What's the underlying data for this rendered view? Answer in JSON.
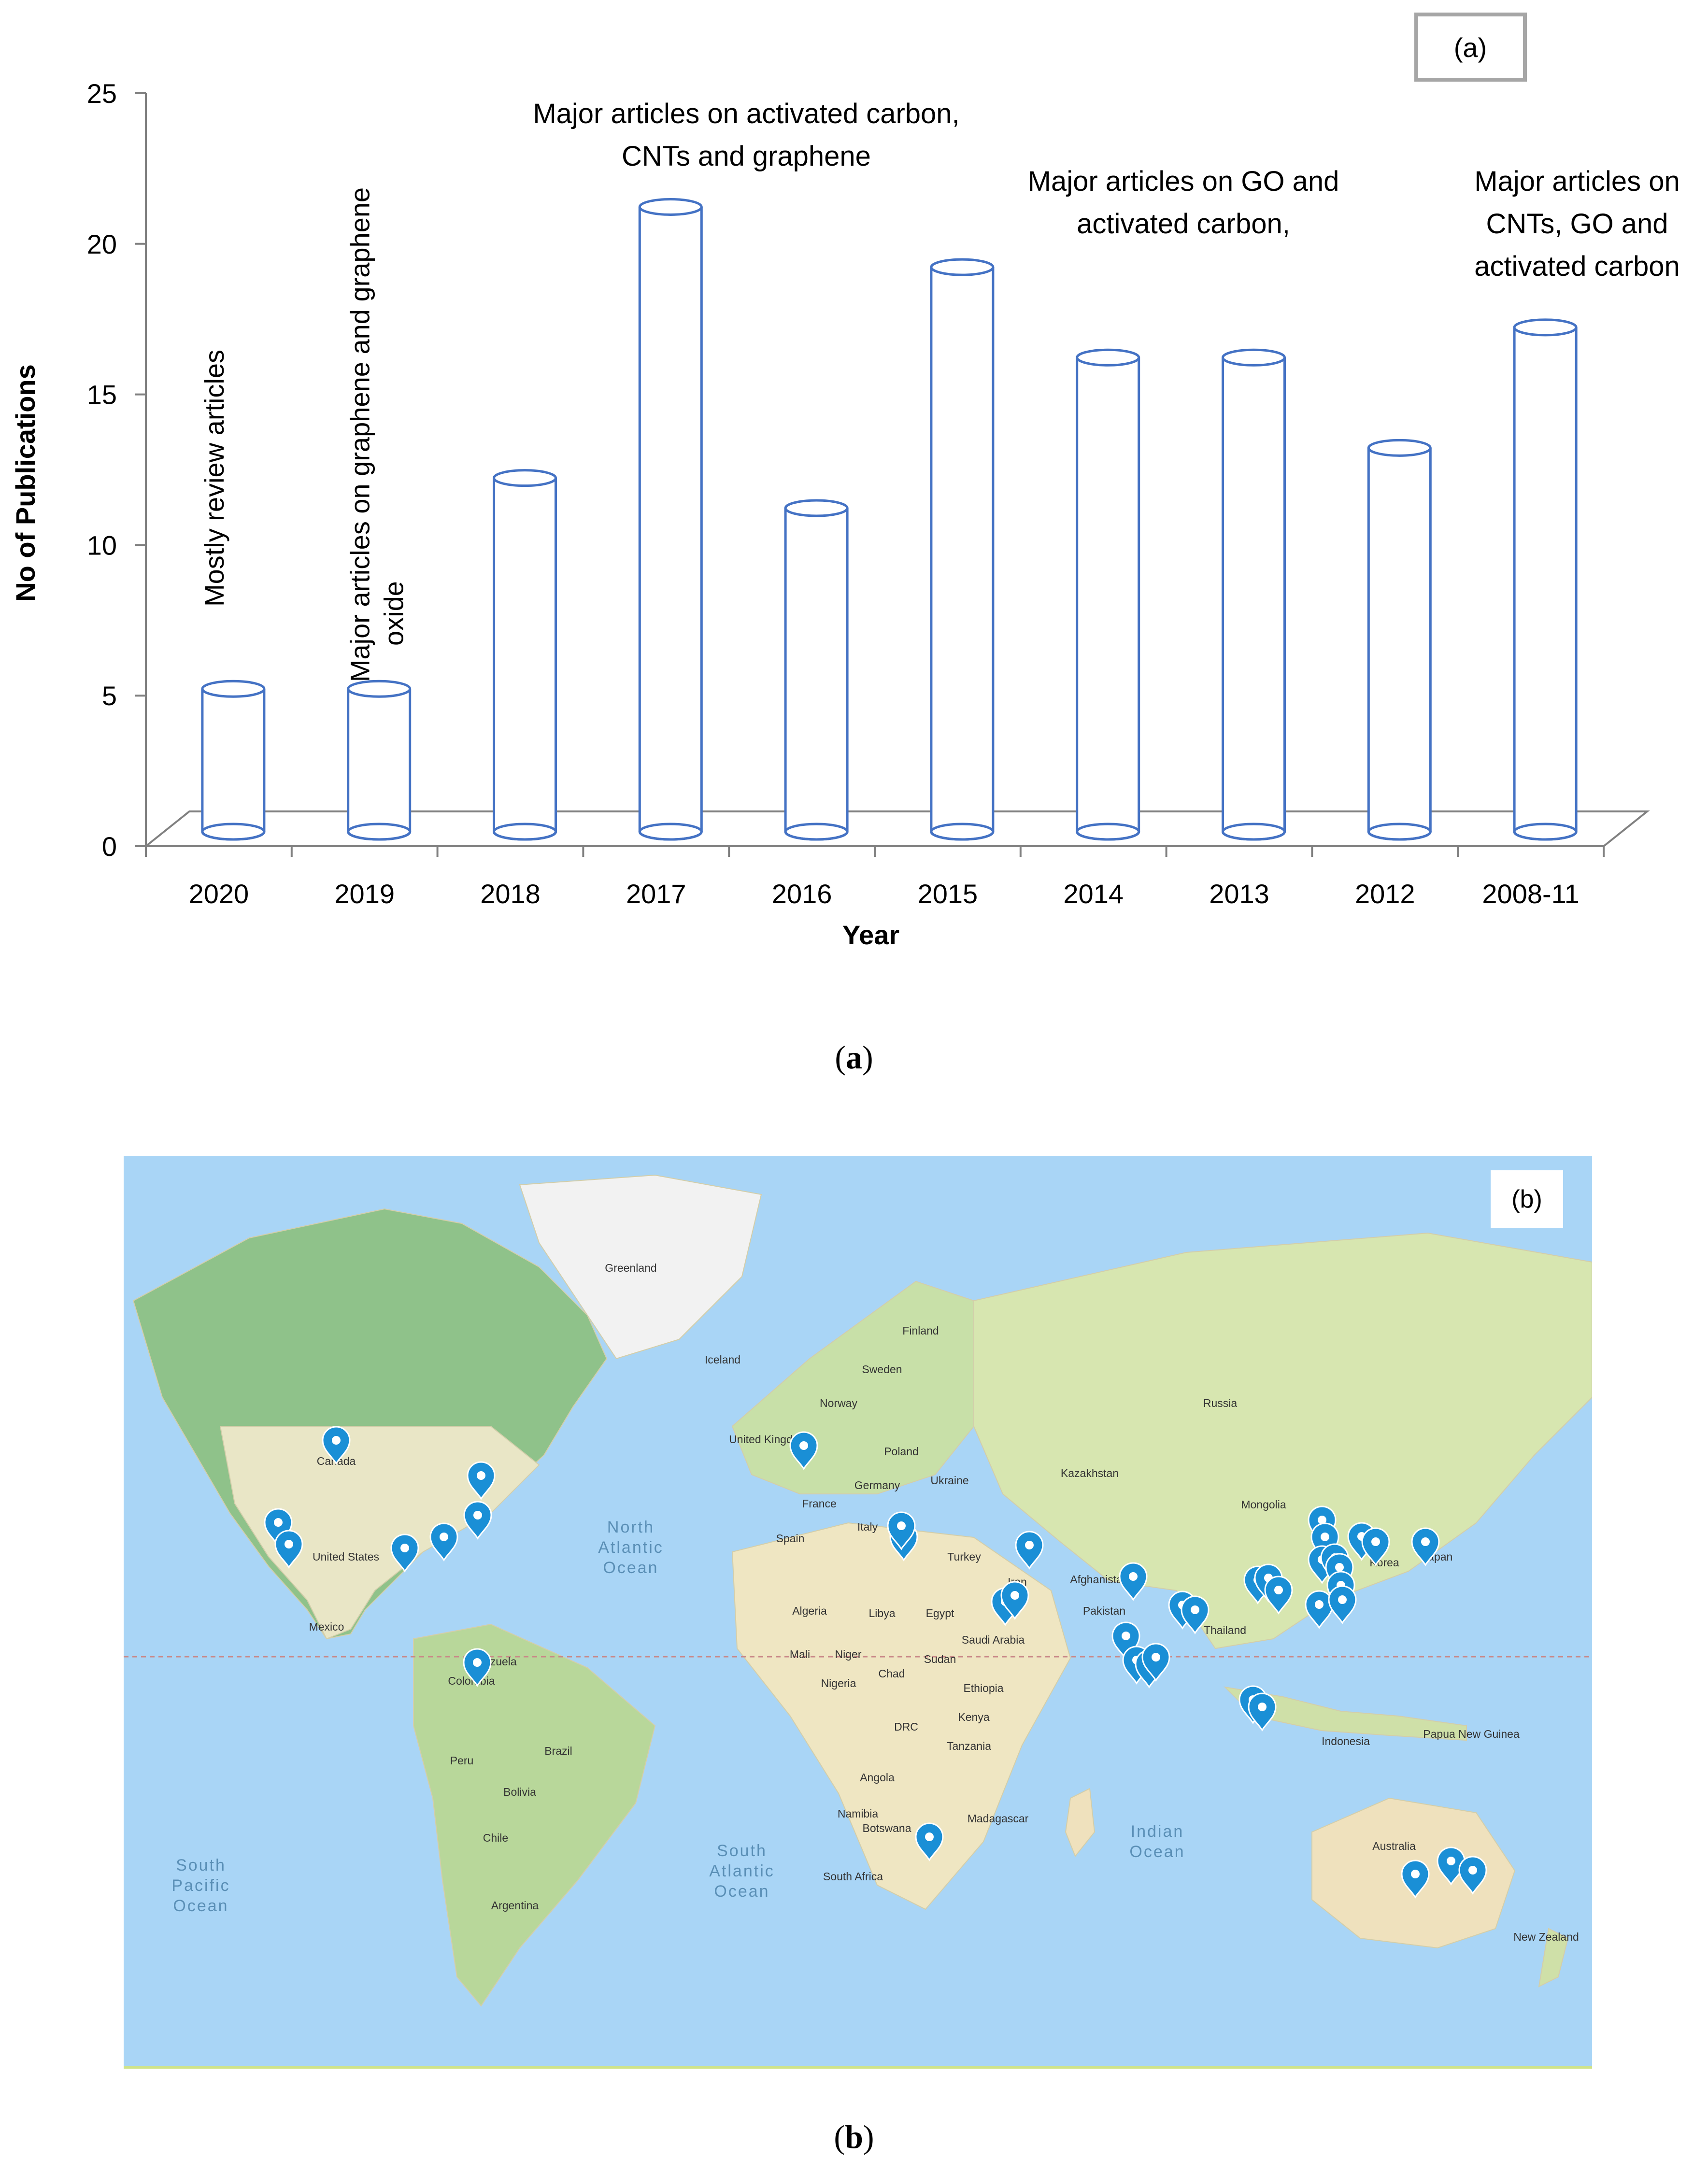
{
  "panel_a": {
    "tag": "(a)",
    "caption_letter": "a"
  },
  "chart_data": {
    "type": "bar",
    "title": "",
    "xlabel": "Year",
    "ylabel": "No of Publications",
    "categories": [
      "2020",
      "2019",
      "2018",
      "2017",
      "2016",
      "2015",
      "2014",
      "2013",
      "2012",
      "2008-11"
    ],
    "values": [
      5,
      5,
      12,
      21,
      11,
      19,
      16,
      16,
      13,
      17
    ],
    "ylim": [
      0,
      25
    ],
    "yticks": [
      0,
      5,
      10,
      15,
      20,
      25
    ],
    "grid": false,
    "annotations": [
      {
        "category": "2020",
        "lines": [
          "Mostly review articles"
        ],
        "orientation": "vertical"
      },
      {
        "category": "2019",
        "lines": [
          "Major articles on graphene and graphene",
          "oxide"
        ],
        "orientation": "vertical"
      },
      {
        "category": "2017",
        "lines": [
          "Major articles on activated carbon,",
          "CNTs  and  graphene"
        ],
        "orientation": "horizontal"
      },
      {
        "category": "2013",
        "lines": [
          "Major articles on  GO  and",
          "activated carbon,"
        ],
        "orientation": "horizontal"
      },
      {
        "category": "2008-11",
        "lines": [
          "Major articles on",
          "CNTs, GO  and",
          "activated carbon"
        ],
        "orientation": "horizontal"
      }
    ],
    "bar_color": "#4472c4"
  },
  "panel_b": {
    "tag": "(b)",
    "caption_letter": "b",
    "land_labels": [
      "Greenland",
      "Iceland",
      "Finland",
      "Sweden",
      "Norway",
      "Russia",
      "United Kingdom",
      "Poland",
      "Germany",
      "Ukraine",
      "France",
      "Italy",
      "Spain",
      "Kazakhstan",
      "Mongolia",
      "Turkey",
      "Iran",
      "Afghanistan",
      "Pakistan",
      "Korea",
      "Japan",
      "Canada",
      "United States",
      "Mexico",
      "Algeria",
      "Libya",
      "Egypt",
      "Saudi Arabia",
      "Mali",
      "Niger",
      "Chad",
      "Sudan",
      "Nigeria",
      "Ethiopia",
      "Kenya",
      "DRC",
      "Tanzania",
      "Angola",
      "Namibia",
      "Botswana",
      "Madagascar",
      "South Africa",
      "Thailand",
      "Indonesia",
      "Papua New Guinea",
      "Australia",
      "New Zealand",
      "Venezuela",
      "Colombia",
      "Peru",
      "Brazil",
      "Bolivia",
      "Chile",
      "Argentina"
    ],
    "ocean_labels": [
      "North Atlantic Ocean",
      "South Atlantic Ocean",
      "South Pacific Ocean",
      "Indian Ocean"
    ],
    "marker_icon": "map-pin-icon",
    "marker_color": "#1a8fd6"
  }
}
